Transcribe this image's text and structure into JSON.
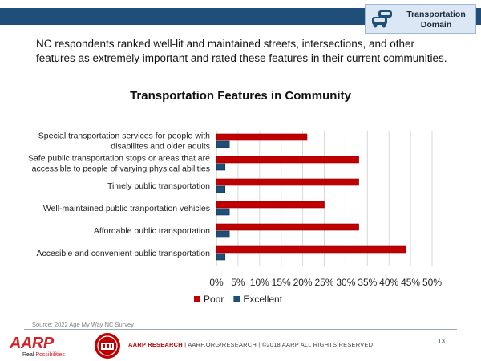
{
  "header": {
    "domain_label_line1": "Transportation",
    "domain_label_line2": "Domain",
    "icon": "cars-icon"
  },
  "intro_text": "NC respondents ranked well-lit and maintained streets, intersections, and other features as extremely important and rated these features in their current communities.",
  "chart_data": {
    "type": "bar",
    "orientation": "horizontal",
    "title": "Transportation Features in Community",
    "categories": [
      [
        "Special transportation services for people with",
        "disabilites and older adults"
      ],
      [
        "Safe public transportation stops or areas that are",
        "accessible to people of varying physical abilities"
      ],
      [
        "Timely public transportation"
      ],
      [
        "Well-maintained public tranportation vehicles"
      ],
      [
        "Affordable public transportation"
      ],
      [
        "Accesible and convenient public transportation"
      ]
    ],
    "series": [
      {
        "name": "Poor",
        "color": "#c00000",
        "values": [
          21,
          33,
          33,
          25,
          33,
          44
        ]
      },
      {
        "name": "Excellent",
        "color": "#1f4e79",
        "values": [
          3,
          2,
          2,
          3,
          3,
          2
        ]
      }
    ],
    "xlim": [
      0,
      50
    ],
    "ticks": [
      "0%",
      "5%",
      "10%",
      "15%",
      "20%",
      "25%",
      "30%",
      "35%",
      "40%",
      "45%",
      "50%"
    ],
    "grid": true,
    "legend": "bottom"
  },
  "footer": {
    "source": "Source: 2022 Age My Way NC Survey",
    "brand": "AARP RESEARCH",
    "text": " | AARP.ORG/RESEARCH | ©2018 AARP  ALL RIGHTS  RESERVED",
    "page_number": "13",
    "logo_word": "AARP",
    "logo_tag_1": "Real ",
    "logo_tag_2": "Possibilities"
  }
}
